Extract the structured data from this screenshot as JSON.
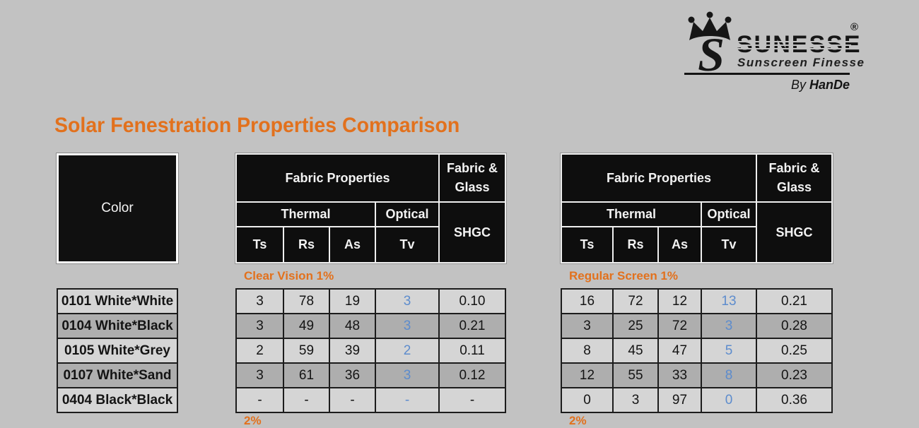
{
  "logo": {
    "brand": "sunesse",
    "registered": "®",
    "tagline": "Sunscreen Finesse",
    "byline_prefix": "By",
    "byline_name": "HanDe"
  },
  "title": "Solar Fenestration Properties Comparison",
  "colors": {
    "accent_orange": "#e2711d",
    "tv_blue": "#5d8ccd",
    "header_black": "#0e0e0e",
    "row_light": "#d5d5d5",
    "row_dark": "#aeaeae",
    "background": "#c2c2c2"
  },
  "color_column": {
    "header": "Color",
    "items": [
      "0101 White*White",
      "0104 White*Black",
      "0105 White*Grey",
      "0107 White*Sand",
      "0404 Black*Black"
    ]
  },
  "header": {
    "fabric_properties": "Fabric Properties",
    "fabric_glass_line1": "Fabric &",
    "fabric_glass_line2": "Glass",
    "thermal": "Thermal",
    "optical": "Optical",
    "shgc": "SHGC",
    "col_ts": "Ts",
    "col_rs": "Rs",
    "col_as": "As",
    "col_tv": "Tv"
  },
  "tables": [
    {
      "section_label": "Clear Vision 1%",
      "next_section_partial": "2%",
      "rows": [
        [
          "3",
          "78",
          "19",
          "3",
          "0.10"
        ],
        [
          "3",
          "49",
          "48",
          "3",
          "0.21"
        ],
        [
          "2",
          "59",
          "39",
          "2",
          "0.11"
        ],
        [
          "3",
          "61",
          "36",
          "3",
          "0.12"
        ],
        [
          "-",
          "-",
          "-",
          "-",
          "-"
        ]
      ]
    },
    {
      "section_label": "Regular Screen 1%",
      "next_section_partial": "2%",
      "rows": [
        [
          "16",
          "72",
          "12",
          "13",
          "0.21"
        ],
        [
          "3",
          "25",
          "72",
          "3",
          "0.28"
        ],
        [
          "8",
          "45",
          "47",
          "5",
          "0.25"
        ],
        [
          "12",
          "55",
          "33",
          "8",
          "0.23"
        ],
        [
          "0",
          "3",
          "97",
          "0",
          "0.36"
        ]
      ]
    }
  ]
}
